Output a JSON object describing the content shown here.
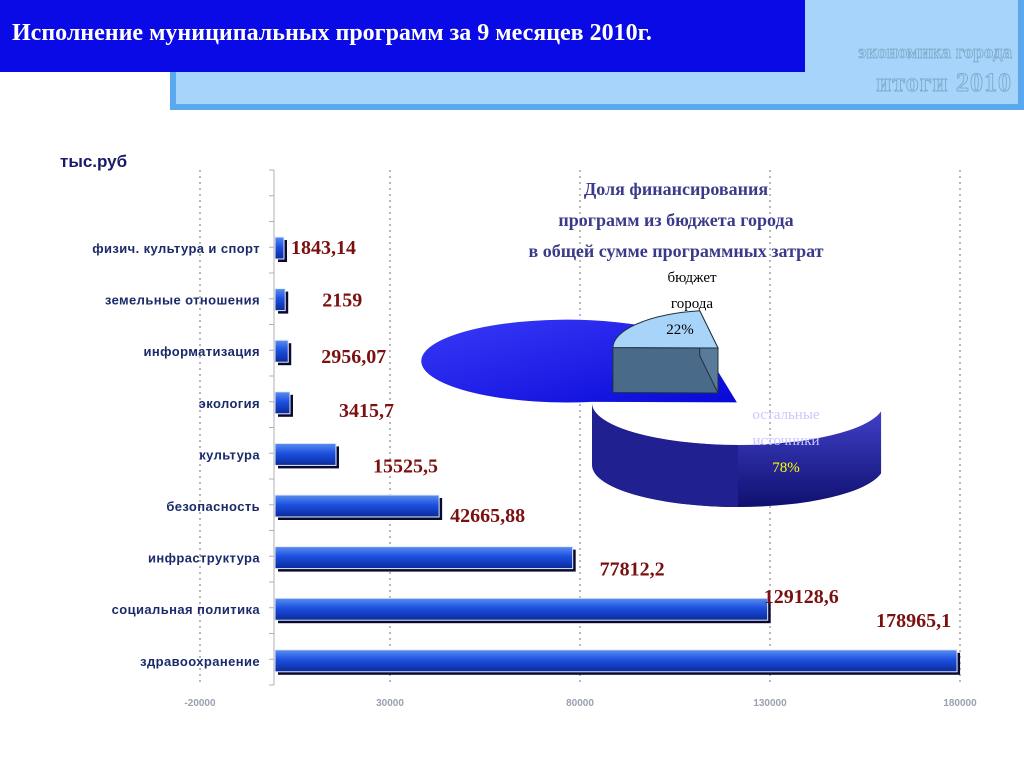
{
  "header": {
    "title": "Исполнение  муниципальных программ за 9 месяцев 2010г.",
    "brand_line1": "экономика города",
    "brand_line2": "итоги  2010"
  },
  "unit": "тыс.руб",
  "colors": {
    "header": "#0a0ae6",
    "bar": "#1c5ad8",
    "value_text": "#7a1010",
    "pie_budget": "#a8d4fa",
    "pie_other": "#1010ee"
  },
  "chart_data": [
    {
      "type": "bar",
      "orientation": "horizontal",
      "categories": [
        "физич. культура и спорт",
        "земельные отношения",
        "информатизация",
        "экология",
        "культура",
        "безопасность",
        "инфраструктура",
        "социальная политика",
        "здравоохранение"
      ],
      "values": [
        1843.14,
        2159,
        2956.07,
        3415.7,
        15525.5,
        42665.88,
        77812.2,
        129128.6,
        178965.1
      ],
      "value_labels": [
        "1843,14",
        "2159",
        "2956,07",
        "3415,7",
        "15525,5",
        "42665,88",
        "77812,2",
        "129128,6",
        "178965,1"
      ],
      "xticks": [
        "-20000",
        "30000",
        "80000",
        "130000",
        "180000"
      ],
      "xlim": [
        -20000,
        180000
      ],
      "grid": "vertical dotted",
      "legend": "none"
    },
    {
      "type": "pie",
      "title_lines": [
        "Доля финансирования",
        "программ из бюджета города",
        "в общей сумме программных затрат"
      ],
      "slices": [
        {
          "label_lines": [
            "бюджет",
            "города"
          ],
          "percent_label": "22%",
          "value": 22
        },
        {
          "label_lines": [
            "остальные",
            "источники"
          ],
          "percent_label": "78%",
          "value": 78
        }
      ]
    }
  ]
}
